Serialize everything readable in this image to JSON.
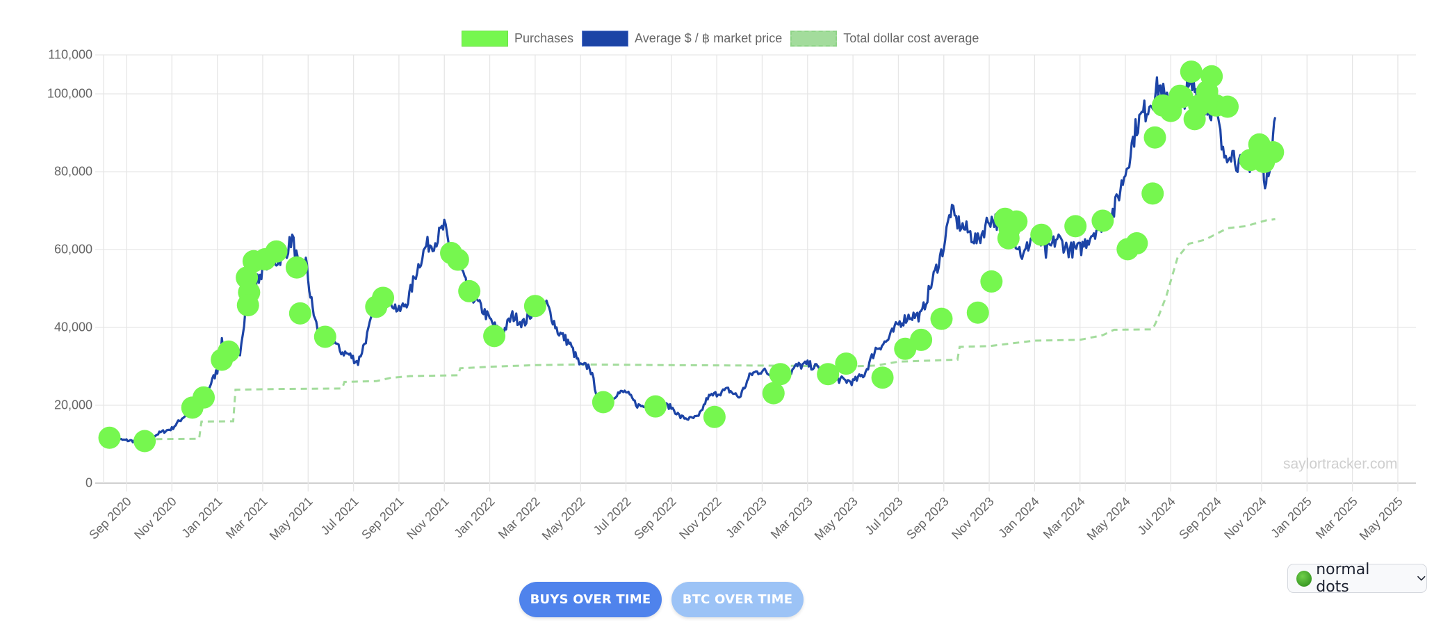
{
  "legend": {
    "items": [
      {
        "label": "Purchases",
        "color": "#76f74f"
      },
      {
        "label": "Average $ / ฿ market price",
        "color": "#1c44a6"
      },
      {
        "label": "Total dollar cost average",
        "color": "#a3dc9c"
      }
    ]
  },
  "watermark": "saylortracker.com",
  "buttons": {
    "buys_over_time": "BUYS OVER TIME",
    "btc_over_time": "BTC OVER TIME"
  },
  "dot_style_select": {
    "selected": "normal dots",
    "icon": "green-circle"
  },
  "chart_data": {
    "type": "line",
    "title": "",
    "xlabel": "",
    "ylabel": "",
    "ylim": [
      0,
      110000
    ],
    "yticks": [
      0,
      20000,
      40000,
      60000,
      80000,
      100000,
      110000
    ],
    "ytick_labels": [
      "0",
      "20,000",
      "40,000",
      "60,000",
      "80,000",
      "100,000",
      "110,000"
    ],
    "xtick_labels": [
      "Sep 2020",
      "Nov 2020",
      "Jan 2021",
      "Mar 2021",
      "May 2021",
      "Jul 2021",
      "Sep 2021",
      "Nov 2021",
      "Jan 2022",
      "Mar 2022",
      "May 2022",
      "Jul 2022",
      "Sep 2022",
      "Nov 2022",
      "Jan 2023",
      "Mar 2023",
      "May 2023",
      "Jul 2023",
      "Sep 2023",
      "Nov 2023",
      "Jan 2024",
      "Mar 2024",
      "May 2024",
      "Jul 2024",
      "Sep 2024",
      "Nov 2024",
      "Jan 2025",
      "Mar 2025",
      "May 2025"
    ],
    "grid": true,
    "legend_position": "top",
    "x_unit": "months since Sep 2020",
    "series": [
      {
        "name": "Average $ / ฿ market price",
        "type": "line",
        "color": "#1c44a6",
        "points": [
          [
            -0.7,
            11500
          ],
          [
            -0.4,
            11200
          ],
          [
            0,
            11000
          ],
          [
            0.5,
            10700
          ],
          [
            1,
            11500
          ],
          [
            1.5,
            13000
          ],
          [
            2,
            14000
          ],
          [
            2.5,
            17000
          ],
          [
            3,
            19000
          ],
          [
            3.5,
            23000
          ],
          [
            4,
            29000
          ],
          [
            4.2,
            36000
          ],
          [
            4.4,
            34000
          ],
          [
            4.7,
            32000
          ],
          [
            5,
            34000
          ],
          [
            5.3,
            47000
          ],
          [
            5.6,
            50000
          ],
          [
            6,
            55000
          ],
          [
            6.3,
            58000
          ],
          [
            6.6,
            57000
          ],
          [
            7,
            59000
          ],
          [
            7.3,
            63000
          ],
          [
            7.6,
            55000
          ],
          [
            7.9,
            57000
          ],
          [
            8.1,
            48000
          ],
          [
            8.3,
            42000
          ],
          [
            8.6,
            36000
          ],
          [
            9,
            38000
          ],
          [
            9.4,
            34000
          ],
          [
            9.8,
            33000
          ],
          [
            10.2,
            31000
          ],
          [
            10.6,
            38000
          ],
          [
            11,
            46000
          ],
          [
            11.5,
            48000
          ],
          [
            12,
            44000
          ],
          [
            12.4,
            47000
          ],
          [
            12.8,
            55000
          ],
          [
            13.2,
            61000
          ],
          [
            13.6,
            62000
          ],
          [
            14,
            66000
          ],
          [
            14.3,
            58000
          ],
          [
            14.6,
            57000
          ],
          [
            15,
            50000
          ],
          [
            15.5,
            46000
          ],
          [
            16,
            42000
          ],
          [
            16.5,
            38000
          ],
          [
            17,
            43000
          ],
          [
            17.5,
            41000
          ],
          [
            18,
            45000
          ],
          [
            18.5,
            46000
          ],
          [
            19,
            39000
          ],
          [
            19.5,
            36000
          ],
          [
            20,
            30000
          ],
          [
            20.4,
            30000
          ],
          [
            20.8,
            21000
          ],
          [
            21.2,
            21000
          ],
          [
            21.6,
            23000
          ],
          [
            22,
            23500
          ],
          [
            22.5,
            20000
          ],
          [
            23,
            19500
          ],
          [
            23.5,
            20500
          ],
          [
            24,
            19500
          ],
          [
            24.4,
            17000
          ],
          [
            24.8,
            16500
          ],
          [
            25.2,
            17000
          ],
          [
            25.6,
            22000
          ],
          [
            26,
            23000
          ],
          [
            26.5,
            24000
          ],
          [
            27,
            22000
          ],
          [
            27.5,
            28000
          ],
          [
            28,
            29000
          ],
          [
            28.5,
            27500
          ],
          [
            29,
            27000
          ],
          [
            29.5,
            30000
          ],
          [
            30,
            30500
          ],
          [
            30.5,
            29500
          ],
          [
            31,
            27000
          ],
          [
            31.5,
            26500
          ],
          [
            32,
            26000
          ],
          [
            32.5,
            28000
          ],
          [
            33,
            34500
          ],
          [
            33.5,
            36500
          ],
          [
            34,
            41000
          ],
          [
            34.5,
            43000
          ],
          [
            35,
            43000
          ],
          [
            35.5,
            52000
          ],
          [
            36,
            61000
          ],
          [
            36.3,
            70000
          ],
          [
            36.6,
            67000
          ],
          [
            37,
            65000
          ],
          [
            37.5,
            62000
          ],
          [
            38,
            68000
          ],
          [
            38.5,
            67000
          ],
          [
            39,
            64000
          ],
          [
            39.5,
            58000
          ],
          [
            40,
            65000
          ],
          [
            40.5,
            59000
          ],
          [
            41,
            63000
          ],
          [
            41.5,
            60000
          ],
          [
            42,
            60000
          ],
          [
            42.5,
            64000
          ],
          [
            43,
            67000
          ],
          [
            43.5,
            70000
          ],
          [
            44,
            80000
          ],
          [
            44.5,
            92000
          ],
          [
            45,
            97000
          ],
          [
            45.5,
            102000
          ],
          [
            46,
            95000
          ],
          [
            46.5,
            99000
          ],
          [
            47,
            102000
          ],
          [
            47.5,
            97000
          ],
          [
            48,
            96000
          ],
          [
            48.3,
            84000
          ],
          [
            48.6,
            86000
          ],
          [
            49,
            82000
          ],
          [
            49.3,
            80000
          ],
          [
            49.6,
            84000
          ],
          [
            50,
            85000
          ],
          [
            50.2,
            76000
          ],
          [
            50.4,
            85000
          ],
          [
            50.6,
            94000
          ]
        ]
      },
      {
        "name": "Total dollar cost average",
        "type": "line",
        "style": "dashed",
        "color": "#a3dc9c",
        "points": [
          [
            1.3,
            11300
          ],
          [
            3.2,
            11400
          ],
          [
            3.3,
            15800
          ],
          [
            4.7,
            15900
          ],
          [
            4.8,
            24000
          ],
          [
            7,
            24200
          ],
          [
            9.5,
            24300
          ],
          [
            9.6,
            26000
          ],
          [
            11,
            26200
          ],
          [
            11.6,
            27000
          ],
          [
            12.5,
            27500
          ],
          [
            14.6,
            27700
          ],
          [
            14.7,
            29500
          ],
          [
            16,
            29900
          ],
          [
            18,
            30300
          ],
          [
            20,
            30500
          ],
          [
            24,
            30300
          ],
          [
            28,
            30200
          ],
          [
            32,
            30000
          ],
          [
            33,
            30200
          ],
          [
            34,
            31200
          ],
          [
            36,
            31600
          ],
          [
            36.6,
            31700
          ],
          [
            36.7,
            35000
          ],
          [
            38,
            35200
          ],
          [
            40,
            36600
          ],
          [
            42,
            36800
          ],
          [
            43,
            38000
          ],
          [
            43.5,
            39400
          ],
          [
            45.2,
            39500
          ],
          [
            45.4,
            42000
          ],
          [
            45.8,
            48000
          ],
          [
            46.3,
            58000
          ],
          [
            46.8,
            61500
          ],
          [
            47.5,
            62500
          ],
          [
            48.5,
            65500
          ],
          [
            49.3,
            66000
          ],
          [
            50.2,
            67500
          ],
          [
            50.6,
            67800
          ]
        ]
      },
      {
        "name": "Purchases",
        "type": "scatter",
        "color": "#76f74f",
        "points": [
          [
            -0.75,
            11650
          ],
          [
            0.8,
            10800
          ],
          [
            2.9,
            19400
          ],
          [
            3.4,
            22000
          ],
          [
            4.2,
            31700
          ],
          [
            4.5,
            33800
          ],
          [
            5.3,
            52800
          ],
          [
            5.4,
            49000
          ],
          [
            5.35,
            45700
          ],
          [
            5.6,
            57000
          ],
          [
            6.1,
            57500
          ],
          [
            6.6,
            59500
          ],
          [
            7.5,
            55400
          ],
          [
            7.65,
            43600
          ],
          [
            8.75,
            37600
          ],
          [
            11,
            45300
          ],
          [
            11.3,
            47600
          ],
          [
            14.3,
            59100
          ],
          [
            14.6,
            57400
          ],
          [
            15.1,
            49300
          ],
          [
            16.2,
            37800
          ],
          [
            18,
            45500
          ],
          [
            21,
            20800
          ],
          [
            23.3,
            19700
          ],
          [
            25.9,
            17000
          ],
          [
            28.5,
            23100
          ],
          [
            28.8,
            28000
          ],
          [
            30.9,
            28000
          ],
          [
            31.7,
            30700
          ],
          [
            33.3,
            27100
          ],
          [
            34.3,
            34500
          ],
          [
            35,
            36800
          ],
          [
            35.9,
            42200
          ],
          [
            37.5,
            43800
          ],
          [
            38.1,
            51800
          ],
          [
            38.7,
            67900
          ],
          [
            38.9,
            65400
          ],
          [
            38.85,
            62900
          ],
          [
            39.2,
            67200
          ],
          [
            40.3,
            63800
          ],
          [
            41.8,
            66000
          ],
          [
            43,
            67400
          ],
          [
            44.1,
            60100
          ],
          [
            44.5,
            61600
          ],
          [
            45.2,
            74400
          ],
          [
            45.3,
            88800
          ],
          [
            45.65,
            97000
          ],
          [
            46,
            95600
          ],
          [
            46.4,
            99500
          ],
          [
            46.5,
            99200
          ],
          [
            46.9,
            105700
          ],
          [
            47.05,
            93500
          ],
          [
            47.25,
            97000
          ],
          [
            47.6,
            100600
          ],
          [
            47.8,
            104500
          ],
          [
            48.0,
            97000
          ],
          [
            48.5,
            96700
          ],
          [
            49.5,
            83000
          ],
          [
            49.9,
            87000
          ],
          [
            50.1,
            82500
          ],
          [
            50.5,
            85000
          ]
        ]
      }
    ]
  }
}
